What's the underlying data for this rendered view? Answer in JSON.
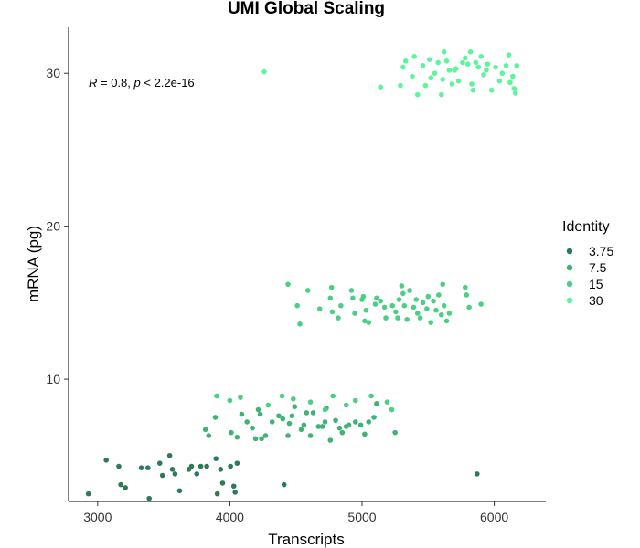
{
  "chart_data": {
    "type": "scatter",
    "title": "UMI Global Scaling",
    "xlabel": "Transcripts",
    "ylabel": "mRNA (pg)",
    "xlim": [
      2780,
      6390
    ],
    "ylim": [
      2.0,
      33.0
    ],
    "x_ticks": [
      3000,
      4000,
      5000,
      6000
    ],
    "y_ticks": [
      10,
      20,
      30
    ],
    "grid": false,
    "legend": {
      "title": "Identity",
      "placement": "right"
    },
    "annotation": {
      "r_label": "R",
      "r_value": " = 0.8, ",
      "p_label": "p",
      "p_value": " < 2.2e-16"
    },
    "series": [
      {
        "name": "3.75",
        "color": "#2e7a56",
        "points": [
          [
            2930,
            2.5
          ],
          [
            3065,
            4.7
          ],
          [
            3160,
            4.3
          ],
          [
            3175,
            3.1
          ],
          [
            3210,
            2.9
          ],
          [
            3330,
            4.2
          ],
          [
            3380,
            4.2
          ],
          [
            3390,
            2.2
          ],
          [
            3470,
            4.5
          ],
          [
            3490,
            3.7
          ],
          [
            3545,
            5.0
          ],
          [
            3565,
            4.1
          ],
          [
            3585,
            3.8
          ],
          [
            3620,
            2.7
          ],
          [
            3690,
            4.1
          ],
          [
            3710,
            4.3
          ],
          [
            3750,
            3.8
          ],
          [
            3780,
            4.3
          ],
          [
            3825,
            4.3
          ],
          [
            3895,
            4.8
          ],
          [
            3905,
            2.5
          ],
          [
            3930,
            4.1
          ],
          [
            3945,
            3.2
          ],
          [
            4005,
            4.3
          ],
          [
            4030,
            3.0
          ],
          [
            4040,
            2.6
          ],
          [
            4055,
            4.5
          ],
          [
            4410,
            3.1
          ],
          [
            5870,
            3.8
          ]
        ]
      },
      {
        "name": "7.5",
        "color": "#3fb374",
        "points": [
          [
            3815,
            6.7
          ],
          [
            3840,
            6.3
          ],
          [
            3890,
            7.5
          ],
          [
            4010,
            6.5
          ],
          [
            4055,
            6.2
          ],
          [
            4090,
            7.7
          ],
          [
            4130,
            7.2
          ],
          [
            4170,
            6.8
          ],
          [
            4195,
            6.1
          ],
          [
            4215,
            8.0
          ],
          [
            4230,
            7.7
          ],
          [
            4240,
            6.1
          ],
          [
            4270,
            6.3
          ],
          [
            4320,
            7.2
          ],
          [
            4370,
            7.6
          ],
          [
            4400,
            7.4
          ],
          [
            4440,
            6.3
          ],
          [
            4450,
            7.1
          ],
          [
            4470,
            7.6
          ],
          [
            4490,
            8.2
          ],
          [
            4540,
            6.7
          ],
          [
            4560,
            7.0
          ],
          [
            4580,
            7.8
          ],
          [
            4610,
            6.3
          ],
          [
            4630,
            7.8
          ],
          [
            4670,
            6.9
          ],
          [
            4700,
            6.9
          ],
          [
            4720,
            7.2
          ],
          [
            4730,
            8.1
          ],
          [
            4760,
            6.0
          ],
          [
            4800,
            7.3
          ],
          [
            4830,
            6.8
          ],
          [
            4850,
            6.5
          ],
          [
            4880,
            6.9
          ],
          [
            4900,
            7.0
          ],
          [
            4950,
            7.2
          ],
          [
            4990,
            7.0
          ],
          [
            5020,
            6.4
          ],
          [
            5050,
            7.2
          ],
          [
            5090,
            7.5
          ],
          [
            5110,
            8.4
          ],
          [
            5250,
            6.5
          ]
        ]
      },
      {
        "name": "15",
        "color": "#4ccf84",
        "points": [
          [
            3900,
            8.9
          ],
          [
            4000,
            8.6
          ],
          [
            4080,
            8.8
          ],
          [
            4290,
            8.3
          ],
          [
            4395,
            8.9
          ],
          [
            4480,
            8.7
          ],
          [
            4610,
            8.5
          ],
          [
            4720,
            8.0
          ],
          [
            4780,
            8.9
          ],
          [
            4880,
            8.3
          ],
          [
            4950,
            8.6
          ],
          [
            5070,
            8.9
          ],
          [
            5190,
            8.5
          ],
          [
            5225,
            8.0
          ],
          [
            4440,
            16.2
          ],
          [
            4510,
            14.8
          ],
          [
            4530,
            13.6
          ],
          [
            4590,
            15.8
          ],
          [
            4680,
            14.6
          ],
          [
            4760,
            15.3
          ],
          [
            4770,
            16.0
          ],
          [
            4775,
            14.4
          ],
          [
            4820,
            14.0
          ],
          [
            4840,
            14.8
          ],
          [
            4920,
            15.8
          ],
          [
            4930,
            15.3
          ],
          [
            4945,
            14.3
          ],
          [
            5000,
            15.2
          ],
          [
            5010,
            15.4
          ],
          [
            5020,
            13.8
          ],
          [
            5030,
            14.5
          ],
          [
            5050,
            13.7
          ],
          [
            5100,
            14.9
          ],
          [
            5110,
            15.3
          ],
          [
            5140,
            15.1
          ],
          [
            5170,
            14.7
          ],
          [
            5180,
            14.0
          ],
          [
            5230,
            14.8
          ],
          [
            5255,
            14.4
          ],
          [
            5270,
            14.0
          ],
          [
            5280,
            15.2
          ],
          [
            5300,
            16.1
          ],
          [
            5310,
            15.6
          ],
          [
            5320,
            14.8
          ],
          [
            5340,
            13.9
          ],
          [
            5360,
            15.8
          ],
          [
            5390,
            14.7
          ],
          [
            5410,
            15.2
          ],
          [
            5420,
            14.3
          ],
          [
            5440,
            14.0
          ],
          [
            5460,
            15.0
          ],
          [
            5490,
            14.6
          ],
          [
            5500,
            15.4
          ],
          [
            5520,
            13.7
          ],
          [
            5540,
            15.1
          ],
          [
            5560,
            14.5
          ],
          [
            5580,
            15.5
          ],
          [
            5600,
            14.2
          ],
          [
            5610,
            16.2
          ],
          [
            5620,
            14.8
          ],
          [
            5640,
            13.8
          ],
          [
            5660,
            14.3
          ],
          [
            5780,
            16.0
          ],
          [
            5790,
            15.5
          ],
          [
            5810,
            14.7
          ],
          [
            5900,
            14.9
          ]
        ]
      },
      {
        "name": "30",
        "color": "#5ef59a",
        "points": [
          [
            4260,
            30.1
          ],
          [
            5140,
            29.1
          ],
          [
            5290,
            29.2
          ],
          [
            5310,
            30.4
          ],
          [
            5330,
            30.8
          ],
          [
            5380,
            29.8
          ],
          [
            5395,
            31.1
          ],
          [
            5420,
            28.6
          ],
          [
            5460,
            30.5
          ],
          [
            5480,
            29.2
          ],
          [
            5510,
            30.9
          ],
          [
            5520,
            29.7
          ],
          [
            5550,
            30.0
          ],
          [
            5575,
            30.7
          ],
          [
            5600,
            28.6
          ],
          [
            5610,
            29.6
          ],
          [
            5620,
            31.4
          ],
          [
            5640,
            30.8
          ],
          [
            5660,
            30.2
          ],
          [
            5680,
            29.3
          ],
          [
            5700,
            30.2
          ],
          [
            5710,
            30.3
          ],
          [
            5730,
            29.5
          ],
          [
            5760,
            30.7
          ],
          [
            5780,
            31.0
          ],
          [
            5800,
            30.6
          ],
          [
            5820,
            31.4
          ],
          [
            5830,
            29.3
          ],
          [
            5840,
            28.9
          ],
          [
            5860,
            30.7
          ],
          [
            5880,
            30.4
          ],
          [
            5900,
            31.1
          ],
          [
            5920,
            29.9
          ],
          [
            5940,
            30.2
          ],
          [
            5950,
            30.6
          ],
          [
            5980,
            28.9
          ],
          [
            6010,
            30.4
          ],
          [
            6040,
            29.5
          ],
          [
            6060,
            30.0
          ],
          [
            6090,
            30.5
          ],
          [
            6110,
            31.2
          ],
          [
            6120,
            29.4
          ],
          [
            6140,
            29.8
          ],
          [
            6150,
            29.0
          ],
          [
            6160,
            28.7
          ],
          [
            6170,
            30.5
          ]
        ]
      }
    ]
  }
}
